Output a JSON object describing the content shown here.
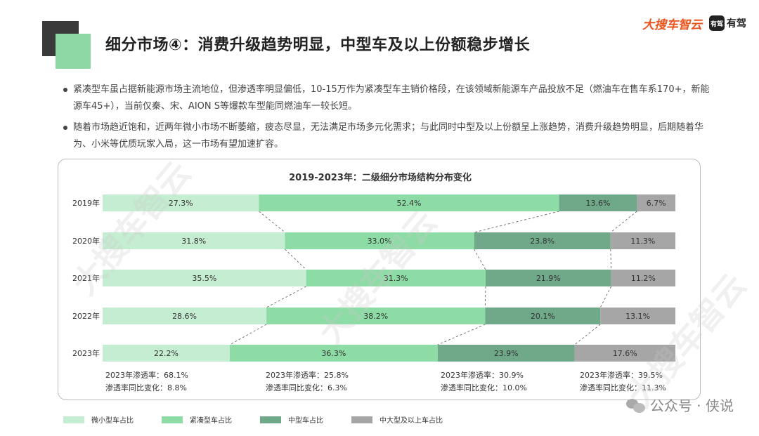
{
  "header": {
    "title": "细分市场④：消费升级趋势明显，中型车及以上份额稳步增长",
    "logo_main": "大搜车智云",
    "logo_second": "有驾",
    "logo_second_icon": "有驾",
    "watermark": "大搜车智云"
  },
  "bullets": [
    "紧凑型车虽占据新能源市场主流地位，但渗透率明显偏低，10-15万作为紧凑型车主销价格段，在该领域新能源车产品投放不足（燃油车在售车系170+，新能源车45+），当前仅秦、宋、AION S等爆款车型能同燃油车一较长短。",
    "随着市场趋近饱和，近两年微小市场不断萎缩，疲态尽显，无法满足市场多元化需求；与此同时中型及以上份额呈上涨趋势，消费升级趋势明显，后期随着华为、小米等优质玩家入局，这一市场有望加速扩容。"
  ],
  "chart_data": {
    "type": "bar",
    "orientation": "horizontal",
    "stacked": "percent",
    "title": "2019-2023年：二级细分市场结构分布变化",
    "categories": [
      "2019年",
      "2020年",
      "2021年",
      "2022年",
      "2023年"
    ],
    "series": [
      {
        "name": "微小型车占比",
        "color": "#c5edd2",
        "values": [
          27.3,
          31.8,
          35.5,
          28.6,
          22.2
        ]
      },
      {
        "name": "紧凑型车占比",
        "color": "#8ddca5",
        "values": [
          52.4,
          33.0,
          31.3,
          38.2,
          36.3
        ]
      },
      {
        "name": "中型车占比",
        "color": "#6fa98a",
        "values": [
          13.6,
          23.8,
          21.9,
          20.1,
          23.9
        ]
      },
      {
        "name": "中大型及以上车占比",
        "color": "#a6a6a6",
        "values": [
          6.7,
          11.3,
          11.2,
          13.1,
          17.6
        ]
      }
    ],
    "data_labels": [
      [
        "27.3%",
        "52.4%",
        "13.6%",
        "6.7%"
      ],
      [
        "31.8%",
        "33.0%",
        "23.8%",
        "11.3%"
      ],
      [
        "35.5%",
        "31.3%",
        "21.9%",
        "11.2%"
      ],
      [
        "28.6%",
        "38.2%",
        "20.1%",
        "13.1%"
      ],
      [
        "22.2%",
        "36.3%",
        "23.9%",
        "17.6%"
      ]
    ],
    "connector_lines": true,
    "legend_position": "bottom-left",
    "annotations": [
      {
        "line1": "2023年渗透率：68.1%",
        "line2": "渗透率同比变化：8.8%"
      },
      {
        "line1": "2023年渗透率：25.8%",
        "line2": "渗透率同比变化：6.3%"
      },
      {
        "line1": "2023年渗透率：30.9%",
        "line2": "渗透率同比变化：10.0%"
      },
      {
        "line1": "2023年渗透率：39.5%",
        "line2": "渗透率同比变化：11.3%"
      }
    ]
  },
  "source": {
    "icon": "wechat-icon",
    "text": "公众号 · 侠说"
  }
}
